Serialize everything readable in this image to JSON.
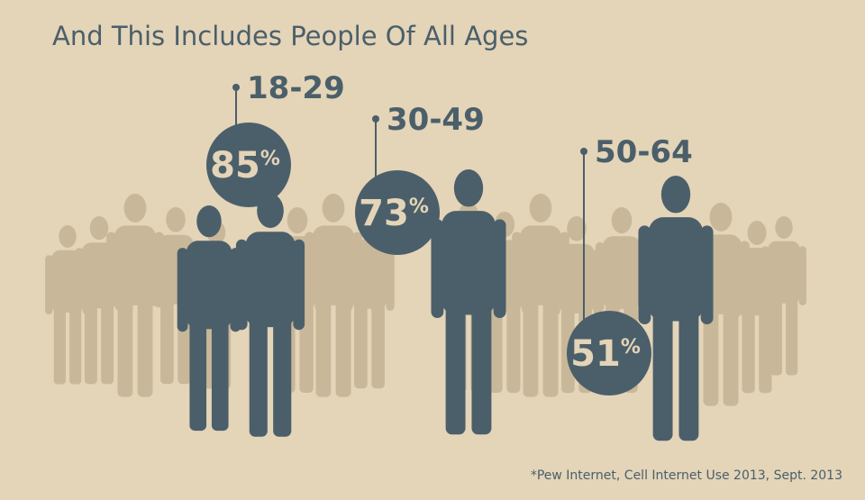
{
  "title": "And This Includes People Of All Ages",
  "groups": [
    {
      "label": "18-29",
      "value": 85,
      "unit": "%"
    },
    {
      "label": "30-49",
      "value": 73,
      "unit": "%"
    },
    {
      "label": "50-64",
      "value": 51,
      "unit": "%"
    }
  ],
  "source": "*Pew Internet, Cell Internet Use 2013, Sept. 2013"
}
